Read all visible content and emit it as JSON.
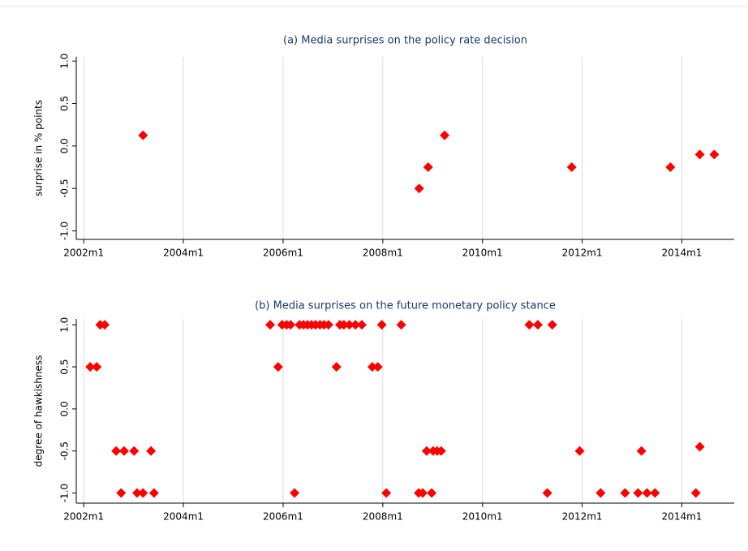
{
  "chart_data": [
    {
      "type": "scatter",
      "title": "(a) Media surprises on the policy rate decision",
      "ylabel": "surprise in % points",
      "color": "#ff0000",
      "grid": true,
      "xlim": [
        2001.85,
        2015.05
      ],
      "ylim": [
        -1.1,
        1.05
      ],
      "xticks": [
        {
          "value": 2002,
          "label": "2002m1"
        },
        {
          "value": 2004,
          "label": "2004m1"
        },
        {
          "value": 2006,
          "label": "2006m1"
        },
        {
          "value": 2008,
          "label": "2008m1"
        },
        {
          "value": 2010,
          "label": "2010m1"
        },
        {
          "value": 2012,
          "label": "2012m1"
        },
        {
          "value": 2014,
          "label": "2014m1"
        }
      ],
      "yticks": [
        {
          "value": -1,
          "label": "-1.0"
        },
        {
          "value": -0.5,
          "label": "-0.5"
        },
        {
          "value": 0,
          "label": "0.0"
        },
        {
          "value": 0.5,
          "label": "0.5"
        },
        {
          "value": 1,
          "label": "1.0"
        }
      ],
      "x": [
        2003.19,
        2008.73,
        2008.91,
        2009.24,
        2011.79,
        2013.77,
        2014.36,
        2014.65
      ],
      "values": [
        0.125,
        -0.5,
        -0.25,
        0.125,
        -0.25,
        -0.25,
        -0.1,
        -0.1
      ]
    },
    {
      "type": "scatter",
      "title": "(b) Media surprises on the future monetary policy stance",
      "ylabel": "degree of hawkishness",
      "color": "#ff0000",
      "grid": true,
      "xlim": [
        2001.85,
        2015.05
      ],
      "ylim": [
        -1.12,
        1.07
      ],
      "xticks": [
        {
          "value": 2002,
          "label": "2002m1"
        },
        {
          "value": 2004,
          "label": "2004m1"
        },
        {
          "value": 2006,
          "label": "2006m1"
        },
        {
          "value": 2008,
          "label": "2008m1"
        },
        {
          "value": 2010,
          "label": "2010m1"
        },
        {
          "value": 2012,
          "label": "2012m1"
        },
        {
          "value": 2014,
          "label": "2014m1"
        }
      ],
      "yticks": [
        {
          "value": -1,
          "label": "-1.0"
        },
        {
          "value": -0.5,
          "label": "-0.5"
        },
        {
          "value": 0,
          "label": "0.0"
        },
        {
          "value": 0.5,
          "label": "0.5"
        },
        {
          "value": 1,
          "label": "1.0"
        }
      ],
      "x": [
        2002.33,
        2002.42,
        2005.74,
        2005.98,
        2006.07,
        2006.15,
        2006.33,
        2006.41,
        2006.49,
        2006.57,
        2006.65,
        2006.74,
        2006.82,
        2006.91,
        2007.14,
        2007.22,
        2007.33,
        2007.45,
        2007.58,
        2007.98,
        2008.37,
        2010.94,
        2011.11,
        2011.4,
        2002.13,
        2002.26,
        2005.9,
        2007.07,
        2007.79,
        2007.9,
        2002.65,
        2002.81,
        2003.01,
        2003.35,
        2008.88,
        2009.01,
        2009.09,
        2009.17,
        2011.95,
        2013.19,
        2014.36,
        2002.75,
        2003.07,
        2003.19,
        2003.41,
        2006.23,
        2008.07,
        2008.72,
        2008.8,
        2008.98,
        2011.3,
        2012.37,
        2012.86,
        2013.12,
        2013.3,
        2013.46,
        2014.28
      ],
      "values": [
        1,
        1,
        1,
        1,
        1,
        1,
        1,
        1,
        1,
        1,
        1,
        1,
        1,
        1,
        1,
        1,
        1,
        1,
        1,
        1,
        1,
        1,
        1,
        1,
        0.5,
        0.5,
        0.5,
        0.5,
        0.5,
        0.5,
        -0.5,
        -0.5,
        -0.5,
        -0.5,
        -0.5,
        -0.5,
        -0.5,
        -0.5,
        -0.5,
        -0.5,
        -0.45,
        -1,
        -1,
        -1,
        -1,
        -1,
        -1,
        -1,
        -1,
        -1,
        -1,
        -1,
        -1,
        -1,
        -1,
        -1,
        -1
      ]
    }
  ]
}
